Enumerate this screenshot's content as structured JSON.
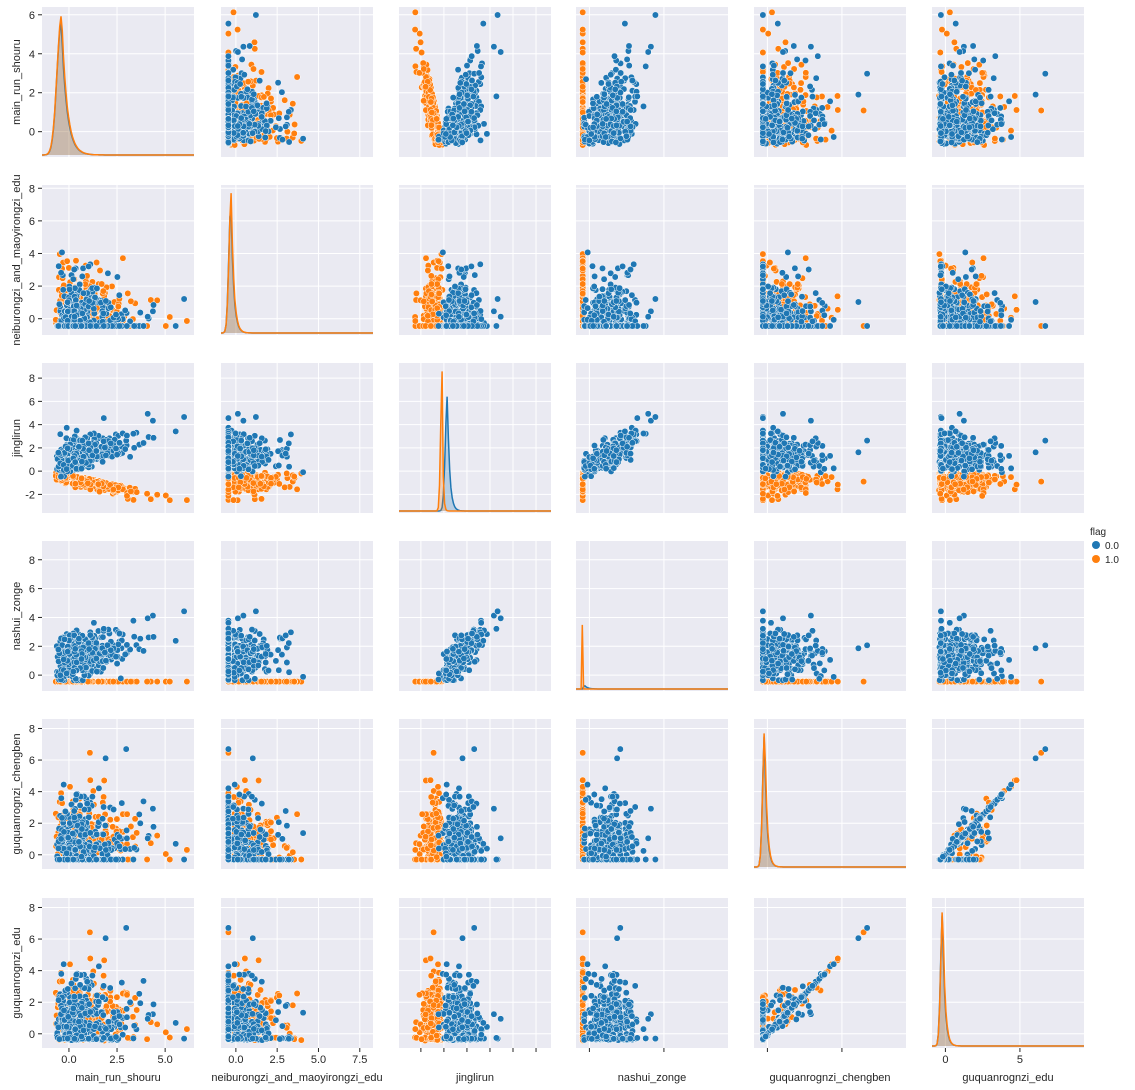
{
  "chart_data": {
    "type": "scatter",
    "variables": [
      "main_run_shouru",
      "neiburongzi_and_maoyirongzi_edu",
      "jinglirun",
      "nashui_zonge",
      "guquanrongzi_chengben",
      "guquanrognzi_edu"
    ],
    "ylabels": [
      "main_run_shouru",
      "neiburongzi_and_maoyirongzi_edu",
      "jinglirun",
      "nashui_zonge",
      "guquanrognzi_chengben",
      "guquanrognzi_edu"
    ],
    "xlabels": [
      "main_run_shouru",
      "neiburongzi_and_maoyirongzi_edu",
      "jinglirun",
      "nashui_zonge",
      "guquanrognzi_chengben",
      "guquanrognzi_edu"
    ],
    "xlim": [
      [
        -1.4,
        6.5
      ],
      [
        -0.9,
        8.3
      ],
      [
        -3.9,
        9.3
      ],
      [
        -0.9,
        9.3
      ],
      [
        -0.9,
        9.3
      ],
      [
        -0.9,
        9.3
      ]
    ],
    "ylim": [
      [
        -1.3,
        6.4
      ],
      [
        -1.0,
        8.2
      ],
      [
        -3.6,
        9.3
      ],
      [
        -1.1,
        9.3
      ],
      [
        -0.9,
        8.6
      ],
      [
        -0.9,
        8.6
      ]
    ],
    "xticks": [
      [
        0,
        2.5,
        5
      ],
      [
        0,
        2.5,
        5,
        7.5
      ],
      [
        -2,
        0,
        2,
        4,
        6,
        8
      ],
      [
        0,
        5
      ],
      [
        0,
        5
      ],
      [
        0,
        5
      ]
    ],
    "yticks": [
      [
        0,
        2,
        4,
        6
      ],
      [
        0,
        2,
        4,
        6,
        8
      ],
      [
        -2,
        0,
        2,
        4,
        6,
        8
      ],
      [
        0,
        2,
        4,
        6,
        8
      ],
      [
        0,
        2,
        4,
        6,
        8
      ],
      [
        0,
        2,
        4,
        6,
        8
      ]
    ],
    "xticklabels": [
      [
        "0.0",
        "2.5",
        "5.0"
      ],
      [
        "0.0",
        "2.5",
        "5.0",
        "7.5"
      ],
      [],
      [],
      [],
      [
        "0",
        "5"
      ]
    ],
    "hue": "flag",
    "series": [
      {
        "name": "0.0",
        "color": "#1f77b4"
      },
      {
        "name": "1.0",
        "color": "#ff7f0e"
      }
    ],
    "diagonal": "kde",
    "grid": true,
    "legend_position": "right"
  }
}
